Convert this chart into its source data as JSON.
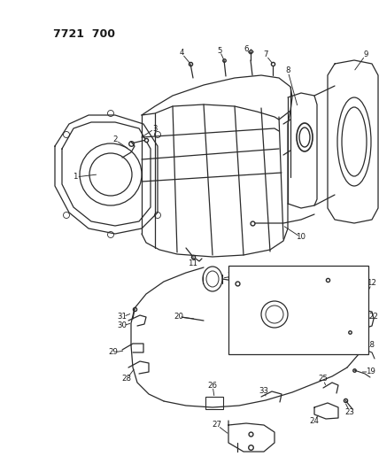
{
  "title": "7721 700",
  "bg_color": "#ffffff",
  "line_color": "#2a2a2a",
  "text_color": "#1a1a1a",
  "figsize": [
    4.28,
    5.33
  ],
  "dpi": 100
}
